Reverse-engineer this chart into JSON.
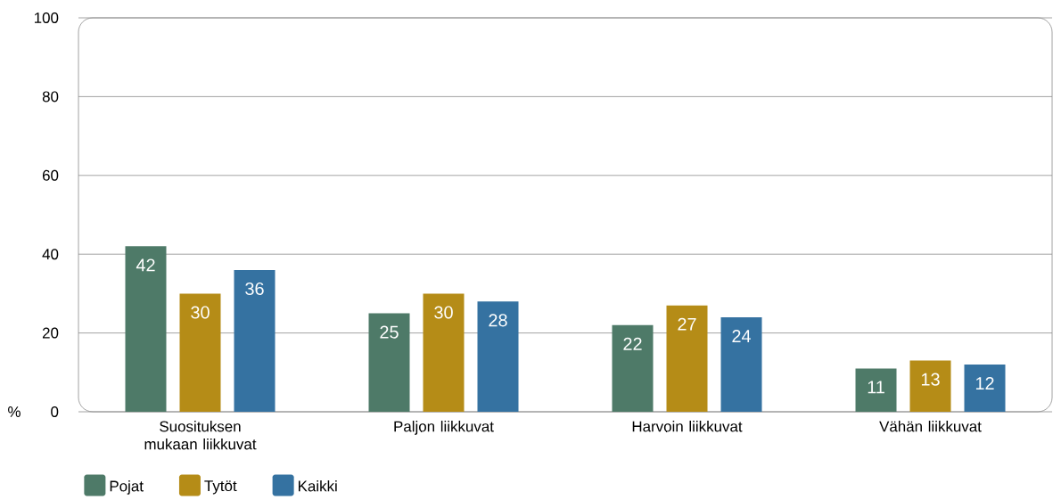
{
  "chart_data": {
    "type": "bar",
    "ylabel": "%",
    "categories": [
      "Suosituksen mukaan liikkuvat",
      "Paljon liikkuvat",
      "Harvoin liikkuvat",
      "Vähän liikkuvat"
    ],
    "series": [
      {
        "name": "Pojat",
        "color": "#4e7a68",
        "values": [
          42,
          25,
          22,
          11
        ]
      },
      {
        "name": "Tytöt",
        "color": "#b58c17",
        "values": [
          30,
          30,
          27,
          13
        ]
      },
      {
        "name": "Kaikki",
        "color": "#3572a1",
        "values": [
          36,
          28,
          24,
          12
        ]
      }
    ],
    "ylim": [
      0,
      100
    ],
    "yticks": [
      0,
      20,
      40,
      60,
      80,
      100
    ],
    "grid": "y",
    "legend": "bottom left",
    "data_labels": true
  }
}
